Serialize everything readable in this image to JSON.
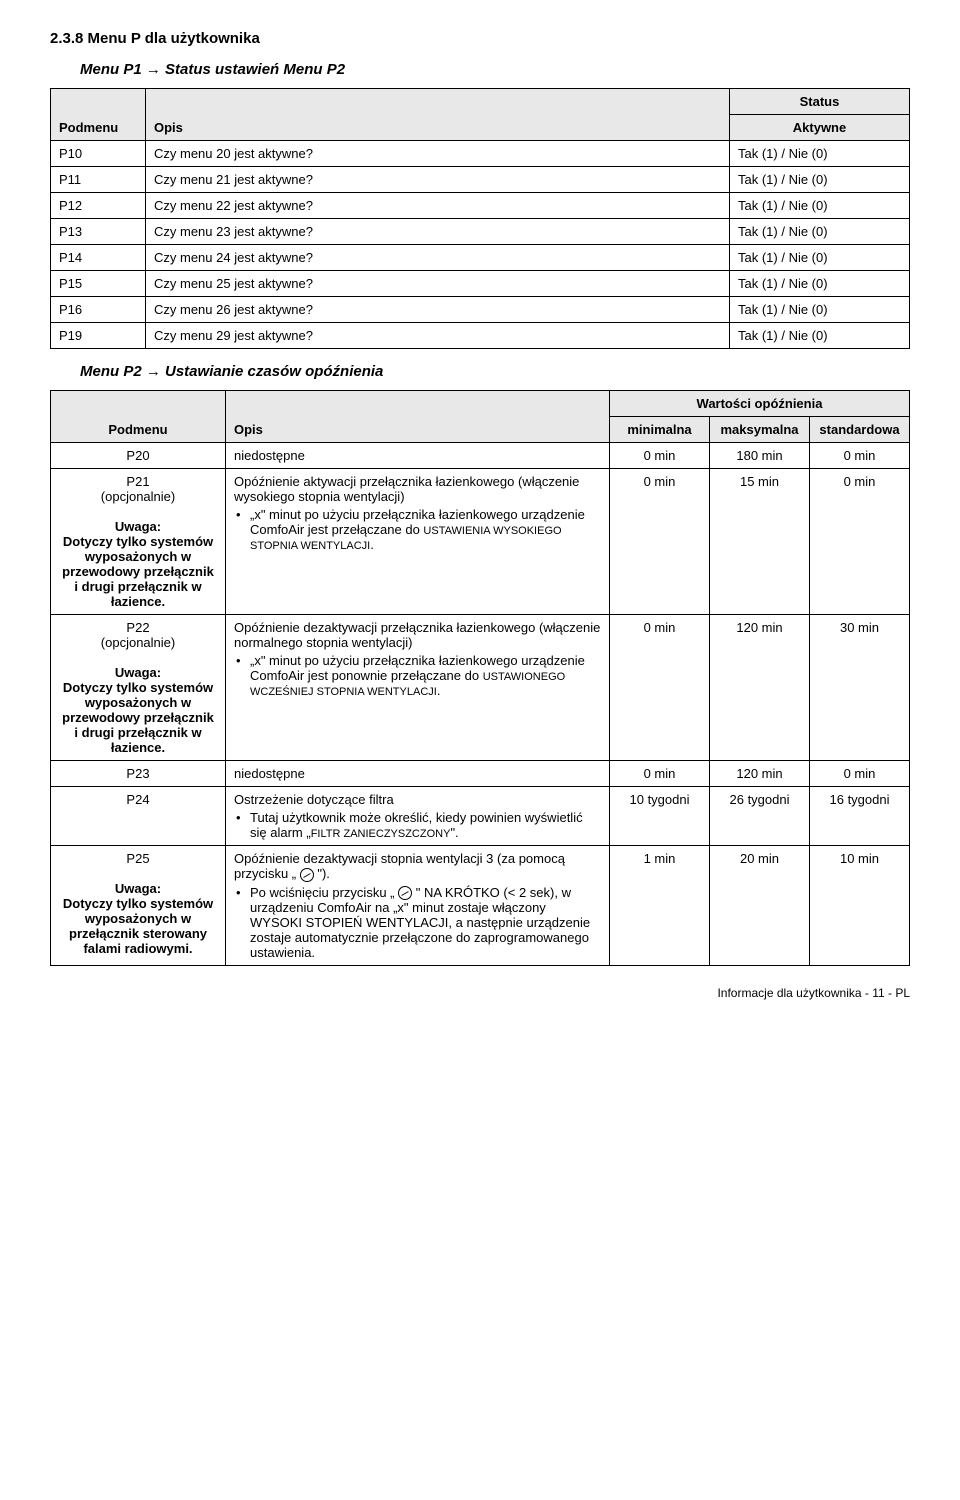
{
  "section_title": "2.3.8  Menu P dla użytkownika",
  "subtitle1": "Menu P1 → Status ustawień Menu P2",
  "table1": {
    "head": {
      "c1": "Podmenu",
      "c2": "Opis",
      "status": "Status",
      "aktywne": "Aktywne"
    },
    "rows": [
      {
        "c1": "P10",
        "c2": "Czy menu 20 jest aktywne?",
        "c3": "Tak (1) / Nie (0)"
      },
      {
        "c1": "P11",
        "c2": "Czy menu 21 jest aktywne?",
        "c3": "Tak (1) / Nie (0)"
      },
      {
        "c1": "P12",
        "c2": "Czy menu 22 jest aktywne?",
        "c3": "Tak (1) / Nie (0)"
      },
      {
        "c1": "P13",
        "c2": "Czy menu 23 jest aktywne?",
        "c3": "Tak (1) / Nie (0)"
      },
      {
        "c1": "P14",
        "c2": "Czy menu 24 jest aktywne?",
        "c3": "Tak (1) / Nie (0)"
      },
      {
        "c1": "P15",
        "c2": "Czy menu 25 jest aktywne?",
        "c3": "Tak (1) / Nie (0)"
      },
      {
        "c1": "P16",
        "c2": "Czy menu 26 jest aktywne?",
        "c3": "Tak (1) / Nie (0)"
      },
      {
        "c1": "P19",
        "c2": "Czy menu 29 jest aktywne?",
        "c3": "Tak (1) / Nie (0)"
      }
    ]
  },
  "subtitle2": "Menu P2 → Ustawianie czasów opóźnienia",
  "table2": {
    "head": {
      "spanTitle": "Wartości opóźnienia",
      "c1": "Podmenu",
      "c2": "Opis",
      "c3": "minimalna",
      "c4": "maksymalna",
      "c5": "standardowa"
    },
    "p20": {
      "c1": "P20",
      "c2": "niedostępne",
      "c3": "0 min",
      "c4": "180 min",
      "c5": "0 min"
    },
    "p21": {
      "c1_a": "P21",
      "c1_b": "(opcjonalnie)",
      "c1_c": "Uwaga:",
      "c1_d": "Dotyczy tylko systemów wyposażonych w przewodowy przełącznik i drugi przełącznik w łazience.",
      "c2_a": "Opóźnienie aktywacji przełącznika łazienkowego (włączenie wysokiego stopnia wentylacji)",
      "c2_b": "„x\" minut po użyciu przełącznika łazienkowego urządzenie ComfoAir jest przełączane do ",
      "c2_sc": "USTAWIENIA WYSOKIEGO STOPNIA WENTYLACJI",
      "c3": "0 min",
      "c4": "15 min",
      "c5": "0 min"
    },
    "p22": {
      "c1_a": "P22",
      "c1_b": "(opcjonalnie)",
      "c1_c": "Uwaga:",
      "c1_d": "Dotyczy tylko systemów wyposażonych w przewodowy przełącznik i drugi przełącznik w łazience.",
      "c2_a": "Opóźnienie dezaktywacji przełącznika łazienkowego (włączenie normalnego stopnia wentylacji)",
      "c2_b": "„x\" minut po użyciu przełącznika łazienkowego urządzenie ComfoAir jest ponownie przełączane do ",
      "c2_sc": "USTAWIONEGO WCZEŚNIEJ STOPNIA WENTYLACJI",
      "c3": "0 min",
      "c4": "120 min",
      "c5": "30 min"
    },
    "p23": {
      "c1": "P23",
      "c2": "niedostępne",
      "c3": "0 min",
      "c4": "120 min",
      "c5": "0 min"
    },
    "p24": {
      "c1": "P24",
      "c2_a": "Ostrzeżenie dotyczące filtra",
      "c2_b": "Tutaj użytkownik może określić, kiedy powinien wyświetlić się alarm „",
      "c2_sc": "FILTR ZANIECZYSZCZONY",
      "c2_c": "\".",
      "c3": "10 tygodni",
      "c4": "26 tygodni",
      "c5": "16 tygodni"
    },
    "p25": {
      "c1_a": "P25",
      "c1_c": "Uwaga:",
      "c1_d": "Dotyczy tylko systemów wyposażonych w przełącznik sterowany falami radiowymi.",
      "c2_a": "Opóźnienie dezaktywacji stopnia wentylacji 3 (za pomocą przycisku „ ",
      "c2_a2": " \").",
      "c2_b": "Po wciśnięciu przycisku „ ",
      "c2_b2": " \" NA KRÓTKO (< 2 sek), w urządzeniu ComfoAir na „x\" minut zostaje włączony WYSOKI STOPIEŃ WENTYLACJI, a następnie urządzenie zostaje automatycznie przełączone do zaprogramowanego ustawienia.",
      "c3": "1 min",
      "c4": "20 min",
      "c5": "10 min"
    }
  },
  "footer": "Informacje dla użytkownika - 11 - PL"
}
